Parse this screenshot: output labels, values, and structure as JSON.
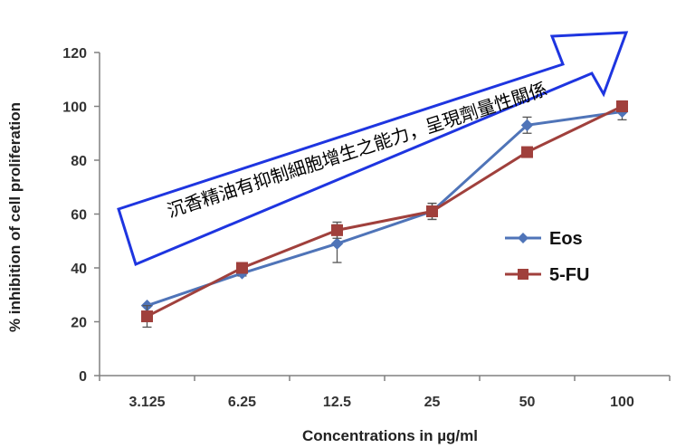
{
  "chart_data": {
    "type": "line",
    "title": "",
    "xlabel": "Concentrations in µg/ml",
    "ylabel": "% inhibition of cell proliferation",
    "categories": [
      "3.125",
      "6.25",
      "12.5",
      "25",
      "50",
      "100"
    ],
    "ylim": [
      0,
      120
    ],
    "yticks": [
      "0",
      "20",
      "40",
      "60",
      "80",
      "100",
      "120"
    ],
    "grid": false,
    "legend_position": "right",
    "series": [
      {
        "name": "Eos",
        "color": "#4F74B8",
        "marker": "diamond",
        "values": [
          26,
          38,
          49,
          61,
          93,
          98
        ],
        "errors": [
          0,
          1,
          7,
          3,
          3,
          3
        ]
      },
      {
        "name": "5-FU",
        "color": "#A0403C",
        "marker": "square",
        "values": [
          22,
          40,
          54,
          61,
          83,
          100
        ],
        "errors": [
          4,
          1,
          3,
          3,
          0,
          2
        ]
      }
    ],
    "annotation": {
      "text": "沉香精油有抑制細胞增生之能力，呈現劑量性關係",
      "shape": "arrow",
      "border_color": "#1E35E0"
    }
  }
}
